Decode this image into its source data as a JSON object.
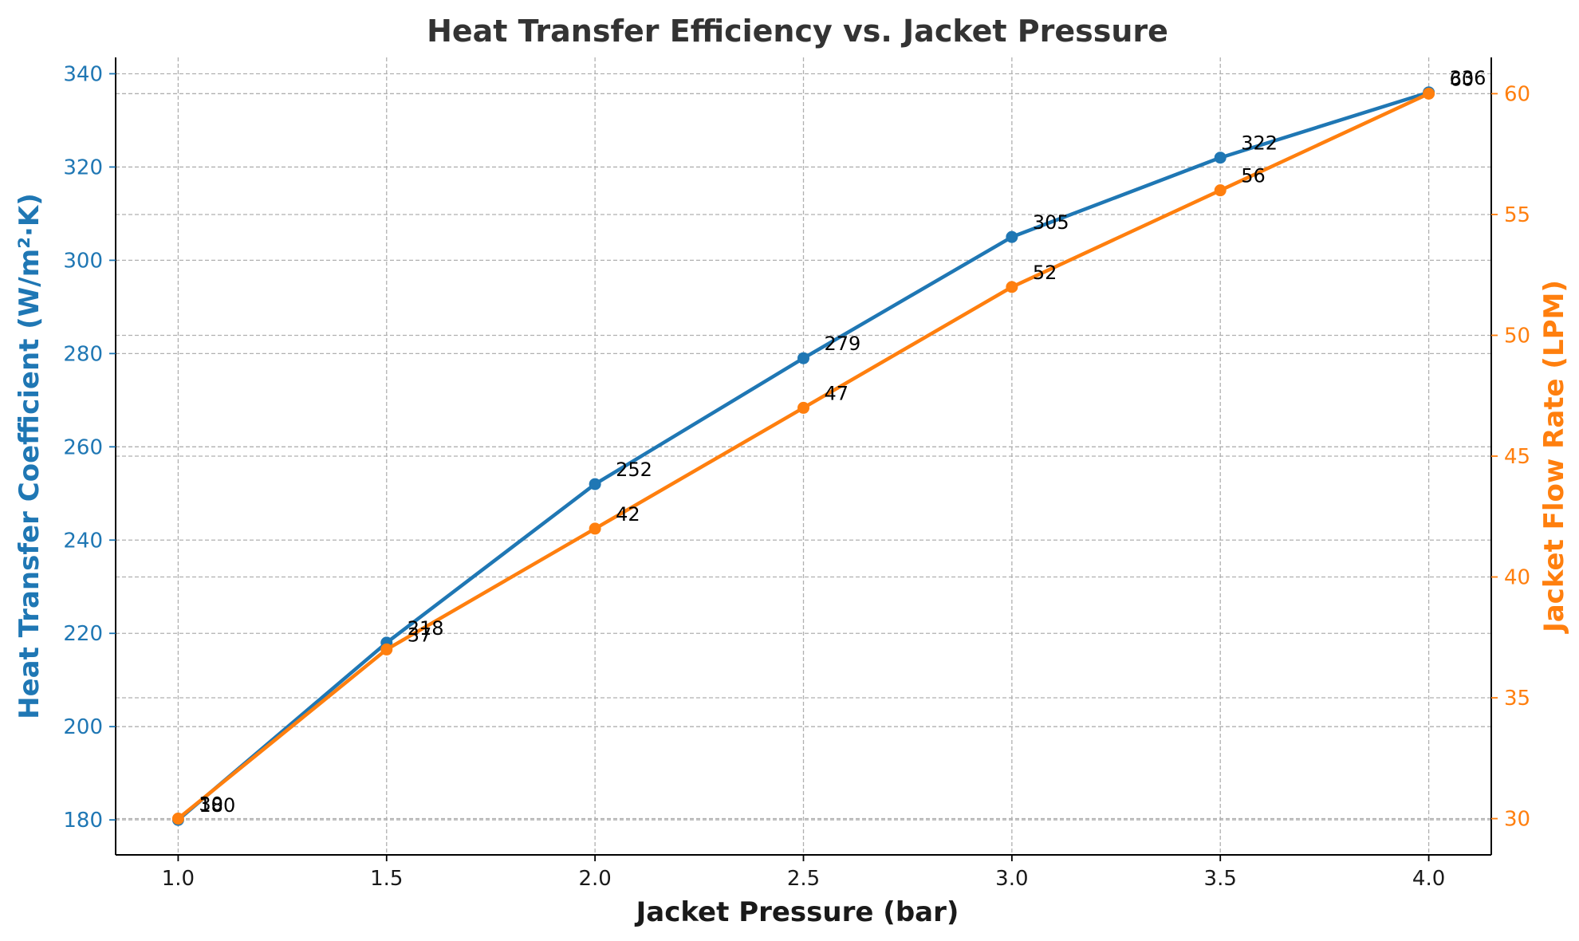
{
  "chart_data": {
    "type": "line",
    "title": "Heat Transfer Efficiency vs. Jacket Pressure",
    "xlabel": "Jacket Pressure (bar)",
    "x": [
      1.0,
      1.5,
      2.0,
      2.5,
      3.0,
      3.5,
      4.0
    ],
    "xticks": [
      "1.0",
      "1.5",
      "2.0",
      "2.5",
      "3.0",
      "3.5",
      "4.0"
    ],
    "xlim": [
      0.85,
      4.15
    ],
    "grid": true,
    "left_axis": {
      "label": "Heat Transfer Coefficient (W/m²·K)",
      "color": "#1f77b4",
      "ylim": [
        172.5,
        343.5
      ],
      "ticks": [
        180,
        200,
        220,
        240,
        260,
        280,
        300,
        320,
        340
      ]
    },
    "right_axis": {
      "label": "Jacket Flow Rate (LPM)",
      "color": "#ff7f0e",
      "ylim": [
        28.5,
        61.5
      ],
      "ticks": [
        30,
        35,
        40,
        45,
        50,
        55,
        60
      ]
    },
    "series": [
      {
        "axis": "left",
        "color": "#1f77b4",
        "values": [
          180,
          218,
          252,
          279,
          305,
          322,
          336
        ],
        "labels": [
          "180",
          "218",
          "252",
          "279",
          "305",
          "322",
          "336"
        ]
      },
      {
        "axis": "right",
        "color": "#ff7f0e",
        "values": [
          30,
          37,
          42,
          47,
          52,
          56,
          60
        ],
        "labels": [
          "30",
          "37",
          "42",
          "47",
          "52",
          "56",
          "60"
        ]
      }
    ]
  }
}
